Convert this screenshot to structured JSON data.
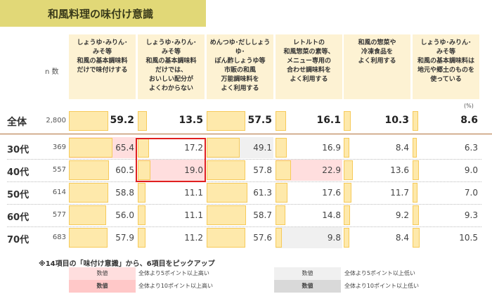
{
  "title": "和風料理の味付け意識",
  "n_label": "n 数",
  "unit_label": "(%)",
  "colors": {
    "bar": "#fee9ab",
    "bar_border": "#f6ca5a",
    "higher5": "#ffdede",
    "higher10": "#ffc8c8",
    "lower5": "#f0f0f0",
    "lower10": "#d9d9d9",
    "highlight_box": "#e02020"
  },
  "chart_data": {
    "type": "table",
    "columns": [
      "しょうゆ･みりん･\nみそ等\n和風の基本調味料\nだけで味付けする",
      "しょうゆ･みりん･\nみそ等\n和風の基本調味料\nだけでは、\nおいしい配分が\nよくわからない",
      "めんつゆ･だししょうゆ･\nぽん酢しょうゆ等\n市販の和風\n万能調味料を\nよく利用する",
      "レトルトの\n和風惣菜の素等、\nメニュー専用の\n合わせ調味料を\nよく利用する",
      "和風の惣菜や\n冷凍食品を\nよく利用する",
      "しょうゆ･みりん･\nみそ等\n和風の基本調味料は\n地元や郷土のものを\n使っている"
    ],
    "rows": [
      {
        "label": "全体",
        "n": "2,800",
        "values": [
          59.2,
          13.5,
          57.5,
          16.1,
          10.3,
          8.6
        ],
        "highlight": [
          "",
          "",
          "",
          "",
          "",
          ""
        ]
      },
      {
        "label": "30代",
        "n": "369",
        "values": [
          65.4,
          17.2,
          49.1,
          16.9,
          8.4,
          6.3
        ],
        "highlight": [
          "higher5",
          "",
          "lower5",
          "",
          "",
          ""
        ]
      },
      {
        "label": "40代",
        "n": "557",
        "values": [
          60.5,
          19.0,
          57.8,
          22.9,
          13.6,
          9.0
        ],
        "highlight": [
          "",
          "higher5",
          "",
          "higher5",
          "",
          ""
        ]
      },
      {
        "label": "50代",
        "n": "614",
        "values": [
          58.8,
          11.1,
          61.3,
          17.6,
          11.7,
          7.0
        ],
        "highlight": [
          "",
          "",
          "",
          "",
          "",
          ""
        ]
      },
      {
        "label": "60代",
        "n": "577",
        "values": [
          56.0,
          11.1,
          58.7,
          14.8,
          9.2,
          9.3
        ],
        "highlight": [
          "",
          "",
          "",
          "",
          "",
          ""
        ]
      },
      {
        "label": "70代",
        "n": "683",
        "values": [
          57.9,
          11.2,
          57.6,
          9.8,
          8.4,
          10.5
        ],
        "highlight": [
          "",
          "",
          "",
          "lower5",
          "",
          ""
        ]
      }
    ],
    "xlim": [
      0,
      100
    ]
  },
  "note": "※14項目の「味付け意識」から、6項目をピックアップ",
  "legend": [
    {
      "swatch": "数値",
      "text": "全体より5ポイント以上高い",
      "kind": "higher5"
    },
    {
      "swatch": "数値",
      "text": "全体より10ポイント以上高い",
      "kind": "higher10"
    },
    {
      "swatch": "数値",
      "text": "全体より5ポイント以上低い",
      "kind": "lower5"
    },
    {
      "swatch": "数値",
      "text": "全体より10ポイント以上低い",
      "kind": "lower10"
    }
  ]
}
